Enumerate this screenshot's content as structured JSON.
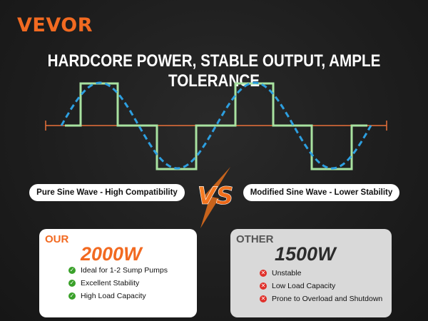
{
  "brand": {
    "name": "VEVOR",
    "color": "#f26a21"
  },
  "headline": "HARDCORE POWER, STABLE OUTPUT, AMPLE TOLERANCE",
  "waves": {
    "pure_label": "Pure Sine Wave - High Compatibility",
    "modified_label": "Modified Sine Wave - Lower Stability",
    "vs_text": "VS",
    "colors": {
      "pure": "#2d9fe0",
      "modified": "#a8e2a0",
      "axis": "#e8703a"
    }
  },
  "comparison": {
    "ours": {
      "tag": "OUR",
      "wattage": "2000W",
      "features": [
        "Ideal for 1-2 Sump Pumps",
        "Excellent Stability",
        "High Load Capacity"
      ],
      "icon": "check-icon",
      "icon_color": "#3aa12a"
    },
    "other": {
      "tag": "OTHER",
      "wattage": "1500W",
      "features": [
        "Unstable",
        "Low Load Capacity",
        "Prone to Overload and Shutdown"
      ],
      "icon": "cross-icon",
      "icon_color": "#e0302a"
    }
  }
}
